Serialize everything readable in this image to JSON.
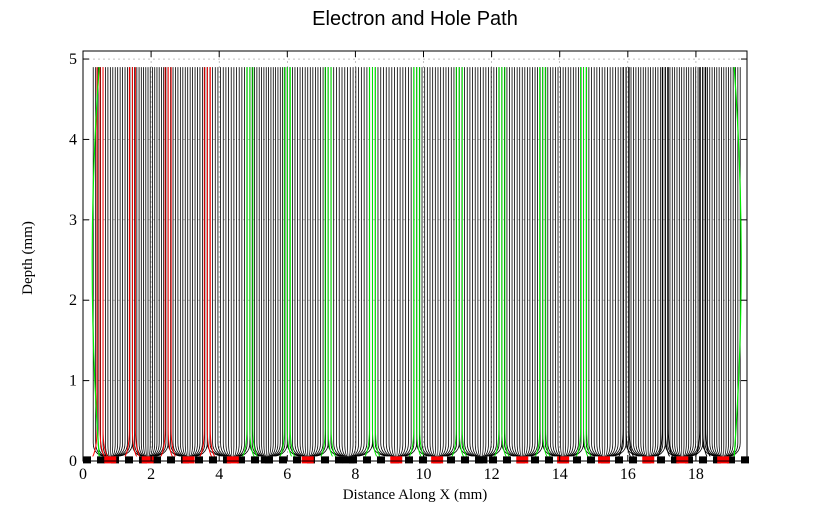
{
  "chart_data": {
    "type": "line",
    "title": "Electron and Hole Path",
    "xlabel": "Distance Along X (mm)",
    "ylabel": "Depth (mm)",
    "xlim": [
      0,
      19.5
    ],
    "ylim": [
      0,
      5.1
    ],
    "grid": true,
    "x_ticks": [
      "0",
      "2",
      "4",
      "6",
      "8",
      "10",
      "12",
      "14",
      "16",
      "18"
    ],
    "y_ticks": [
      "0",
      "1",
      "2",
      "3",
      "4",
      "5"
    ],
    "surface_depth": 4.9,
    "colors": {
      "electron_path": "#000000",
      "hole_path_green": "#00ee00",
      "hole_path_red": "#ff0000",
      "electrode": "#ff0000",
      "strip_gap": "#000000"
    },
    "electrodes": [
      {
        "x": 0.8,
        "color": "red"
      },
      {
        "x": 1.9,
        "color": "red"
      },
      {
        "x": 3.1,
        "color": "red"
      },
      {
        "x": 4.4,
        "color": "red"
      },
      {
        "x": 5.4,
        "color": "black"
      },
      {
        "x": 6.6,
        "color": "red"
      },
      {
        "x": 7.8,
        "color": "black"
      },
      {
        "x": 9.2,
        "color": "red"
      },
      {
        "x": 10.4,
        "color": "red"
      },
      {
        "x": 11.7,
        "color": "black"
      },
      {
        "x": 12.9,
        "color": "red"
      },
      {
        "x": 14.1,
        "color": "red"
      },
      {
        "x": 15.3,
        "color": "red"
      },
      {
        "x": 16.6,
        "color": "red"
      },
      {
        "x": 17.6,
        "color": "red"
      },
      {
        "x": 18.8,
        "color": "red"
      }
    ],
    "hole_boundaries": [
      {
        "x": 0.5,
        "color": "red"
      },
      {
        "x": 1.45,
        "color": "red"
      },
      {
        "x": 2.5,
        "color": "red"
      },
      {
        "x": 3.65,
        "color": "red"
      },
      {
        "x": 4.9,
        "color": "green"
      },
      {
        "x": 6.0,
        "color": "green"
      },
      {
        "x": 7.2,
        "color": "green"
      },
      {
        "x": 8.5,
        "color": "green"
      },
      {
        "x": 9.8,
        "color": "green"
      },
      {
        "x": 11.05,
        "color": "green"
      },
      {
        "x": 12.3,
        "color": "green"
      },
      {
        "x": 13.5,
        "color": "green"
      },
      {
        "x": 14.7,
        "color": "green"
      },
      {
        "x": 15.95,
        "color": "black"
      },
      {
        "x": 17.1,
        "color": "black"
      },
      {
        "x": 18.2,
        "color": "black"
      }
    ],
    "edges": {
      "left": 0.3,
      "right": 19.3
    }
  }
}
